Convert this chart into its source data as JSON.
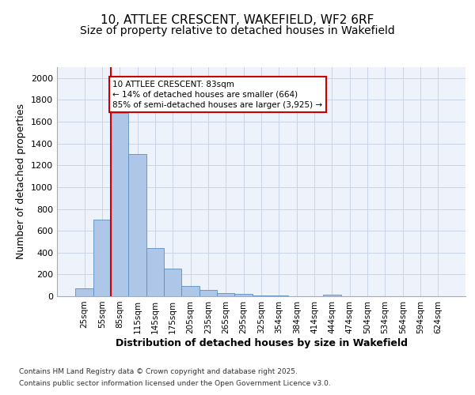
{
  "title_line1": "10, ATTLEE CRESCENT, WAKEFIELD, WF2 6RF",
  "title_line2": "Size of property relative to detached houses in Wakefield",
  "xlabel": "Distribution of detached houses by size in Wakefield",
  "ylabel": "Number of detached properties",
  "categories": [
    "25sqm",
    "55sqm",
    "85sqm",
    "115sqm",
    "145sqm",
    "175sqm",
    "205sqm",
    "235sqm",
    "265sqm",
    "295sqm",
    "325sqm",
    "354sqm",
    "384sqm",
    "414sqm",
    "444sqm",
    "474sqm",
    "504sqm",
    "534sqm",
    "564sqm",
    "594sqm",
    "624sqm"
  ],
  "values": [
    70,
    700,
    1680,
    1300,
    440,
    255,
    95,
    55,
    30,
    20,
    10,
    5,
    0,
    0,
    15,
    0,
    0,
    0,
    0,
    0,
    0
  ],
  "bar_color": "#aec6e8",
  "bar_edge_color": "#5a8fc0",
  "grid_color": "#c8d4e8",
  "background_color": "#eef2fb",
  "annotation_text": "10 ATTLEE CRESCENT: 83sqm\n← 14% of detached houses are smaller (664)\n85% of semi-detached houses are larger (3,925) →",
  "annotation_box_color": "#ffffff",
  "annotation_box_edge": "#cc0000",
  "red_line_color": "#cc0000",
  "ylim": [
    0,
    2100
  ],
  "yticks": [
    0,
    200,
    400,
    600,
    800,
    1000,
    1200,
    1400,
    1600,
    1800,
    2000
  ],
  "footer_line1": "Contains HM Land Registry data © Crown copyright and database right 2025.",
  "footer_line2": "Contains public sector information licensed under the Open Government Licence v3.0.",
  "title_fontsize": 11,
  "subtitle_fontsize": 10,
  "axis_label_fontsize": 9,
  "tick_label_fontsize": 7.5,
  "annotation_fontsize": 7.5,
  "footer_fontsize": 6.5
}
